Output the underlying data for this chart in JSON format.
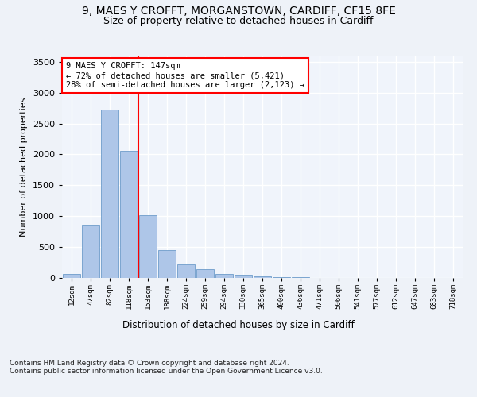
{
  "title_line1": "9, MAES Y CROFFT, MORGANSTOWN, CARDIFF, CF15 8FE",
  "title_line2": "Size of property relative to detached houses in Cardiff",
  "xlabel": "Distribution of detached houses by size in Cardiff",
  "ylabel": "Number of detached properties",
  "bin_labels": [
    "12sqm",
    "47sqm",
    "82sqm",
    "118sqm",
    "153sqm",
    "188sqm",
    "224sqm",
    "259sqm",
    "294sqm",
    "330sqm",
    "365sqm",
    "400sqm",
    "436sqm",
    "471sqm",
    "506sqm",
    "541sqm",
    "577sqm",
    "612sqm",
    "647sqm",
    "683sqm",
    "718sqm"
  ],
  "bar_values": [
    60,
    850,
    2720,
    2060,
    1010,
    450,
    220,
    140,
    70,
    55,
    30,
    15,
    10,
    5,
    2,
    2,
    1,
    1,
    0,
    0,
    0
  ],
  "bar_color": "#aec6e8",
  "bar_edge_color": "#5a8fc2",
  "vline_color": "red",
  "annotation_text": "9 MAES Y CROFFT: 147sqm\n← 72% of detached houses are smaller (5,421)\n28% of semi-detached houses are larger (2,123) →",
  "annotation_box_color": "white",
  "annotation_box_edge_color": "red",
  "ylim": [
    0,
    3600
  ],
  "yticks": [
    0,
    500,
    1000,
    1500,
    2000,
    2500,
    3000,
    3500
  ],
  "footnote": "Contains HM Land Registry data © Crown copyright and database right 2024.\nContains public sector information licensed under the Open Government Licence v3.0.",
  "bg_color": "#eef2f8",
  "plot_bg_color": "#f0f4fb",
  "grid_color": "white",
  "title_fontsize": 10,
  "subtitle_fontsize": 9,
  "annotation_fontsize": 7.5,
  "footnote_fontsize": 6.5,
  "xlabel_fontsize": 8.5,
  "ylabel_fontsize": 8
}
